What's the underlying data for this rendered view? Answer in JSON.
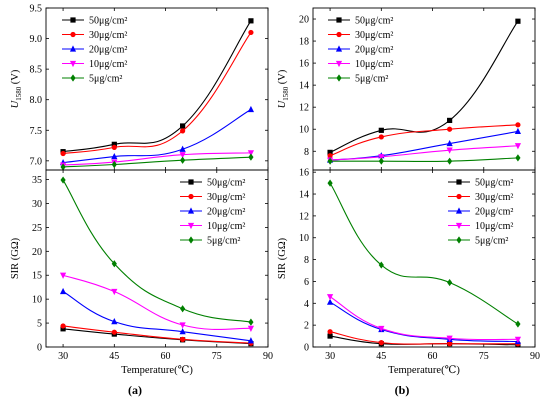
{
  "figure_labels": {
    "a": "(a)",
    "b": "(b)"
  },
  "series_names": [
    "50μg/cm²",
    "30μg/cm²",
    "20μg/cm²",
    "10μg/cm²",
    "5μg/cm²"
  ],
  "series_colors": [
    "#000000",
    "#ff0000",
    "#0000ff",
    "#ff00ff",
    "#008000"
  ],
  "series_markers": [
    "square",
    "circle",
    "triangle-up",
    "triangle-down",
    "diamond"
  ],
  "chart_data": [
    {
      "id": "a-top",
      "type": "line",
      "xlabel": "",
      "ylabel": "U1580 (V)",
      "xlim": [
        25,
        90
      ],
      "ylim": [
        6.85,
        9.5
      ],
      "yticks": [
        7.0,
        7.5,
        8.0,
        8.5,
        9.0,
        9.5
      ],
      "xticks": [
        30,
        45,
        60,
        75,
        90
      ],
      "legend": "top-left",
      "x": [
        30,
        45,
        65,
        85
      ],
      "series": [
        {
          "name": "50μg/cm²",
          "values": [
            7.15,
            7.27,
            7.57,
            9.29
          ]
        },
        {
          "name": "30μg/cm²",
          "values": [
            7.12,
            7.22,
            7.49,
            9.1
          ]
        },
        {
          "name": "20μg/cm²",
          "values": [
            6.97,
            7.07,
            7.19,
            7.84
          ]
        },
        {
          "name": "10μg/cm²",
          "values": [
            6.93,
            6.98,
            7.1,
            7.13
          ]
        },
        {
          "name": "5μg/cm²",
          "values": [
            6.9,
            6.94,
            7.01,
            7.06
          ]
        }
      ]
    },
    {
      "id": "a-bottom",
      "type": "line",
      "xlabel": "Temperature(℃)",
      "ylabel": "SIR (GΩ)",
      "xlim": [
        25,
        90
      ],
      "ylim": [
        0,
        37
      ],
      "yticks": [
        0,
        5,
        10,
        15,
        20,
        25,
        30,
        35
      ],
      "xticks": [
        30,
        45,
        60,
        75,
        90
      ],
      "legend": "top-right",
      "x": [
        30,
        45,
        65,
        85
      ],
      "series": [
        {
          "name": "50μg/cm²",
          "values": [
            3.8,
            2.7,
            1.5,
            0.7
          ]
        },
        {
          "name": "30μg/cm²",
          "values": [
            4.4,
            3.1,
            1.6,
            0.8
          ]
        },
        {
          "name": "20μg/cm²",
          "values": [
            11.6,
            5.3,
            3.2,
            1.3
          ]
        },
        {
          "name": "10μg/cm²",
          "values": [
            15.0,
            11.6,
            4.6,
            3.9
          ]
        },
        {
          "name": "5μg/cm²",
          "values": [
            34.9,
            17.4,
            8.0,
            5.2
          ]
        }
      ]
    },
    {
      "id": "b-top",
      "type": "line",
      "xlabel": "",
      "ylabel": "U1580 (V)",
      "xlim": [
        25,
        90
      ],
      "ylim": [
        6.3,
        21
      ],
      "yticks": [
        8,
        10,
        12,
        14,
        16,
        18,
        20
      ],
      "xticks": [
        30,
        45,
        60,
        75,
        90
      ],
      "legend": "top-left",
      "x": [
        30,
        45,
        65,
        85
      ],
      "series": [
        {
          "name": "50μg/cm²",
          "values": [
            7.9,
            9.9,
            10.8,
            19.8
          ]
        },
        {
          "name": "30μg/cm²",
          "values": [
            7.6,
            9.3,
            10.0,
            10.4
          ]
        },
        {
          "name": "20μg/cm²",
          "values": [
            7.2,
            7.6,
            8.7,
            9.8
          ]
        },
        {
          "name": "10μg/cm²",
          "values": [
            7.2,
            7.5,
            8.1,
            8.5
          ]
        },
        {
          "name": "5μg/cm²",
          "values": [
            7.1,
            7.1,
            7.1,
            7.4
          ]
        }
      ]
    },
    {
      "id": "b-bottom",
      "type": "line",
      "xlabel": "Temperature(℃)",
      "ylabel": "SIR (GΩ)",
      "xlim": [
        25,
        90
      ],
      "ylim": [
        0,
        16.2
      ],
      "yticks": [
        0,
        2,
        4,
        6,
        8,
        10,
        12,
        14,
        16
      ],
      "xticks": [
        30,
        45,
        60,
        75,
        90
      ],
      "legend": "top-right",
      "x": [
        30,
        45,
        65,
        85
      ],
      "series": [
        {
          "name": "50μg/cm²",
          "values": [
            1.0,
            0.3,
            0.3,
            0.2
          ]
        },
        {
          "name": "30μg/cm²",
          "values": [
            1.4,
            0.4,
            0.3,
            0.3
          ]
        },
        {
          "name": "20μg/cm²",
          "values": [
            4.1,
            1.6,
            0.7,
            0.5
          ]
        },
        {
          "name": "10μg/cm²",
          "values": [
            4.6,
            1.7,
            0.8,
            0.7
          ]
        },
        {
          "name": "5μg/cm²",
          "values": [
            15.0,
            7.5,
            5.9,
            2.1
          ]
        }
      ]
    }
  ]
}
